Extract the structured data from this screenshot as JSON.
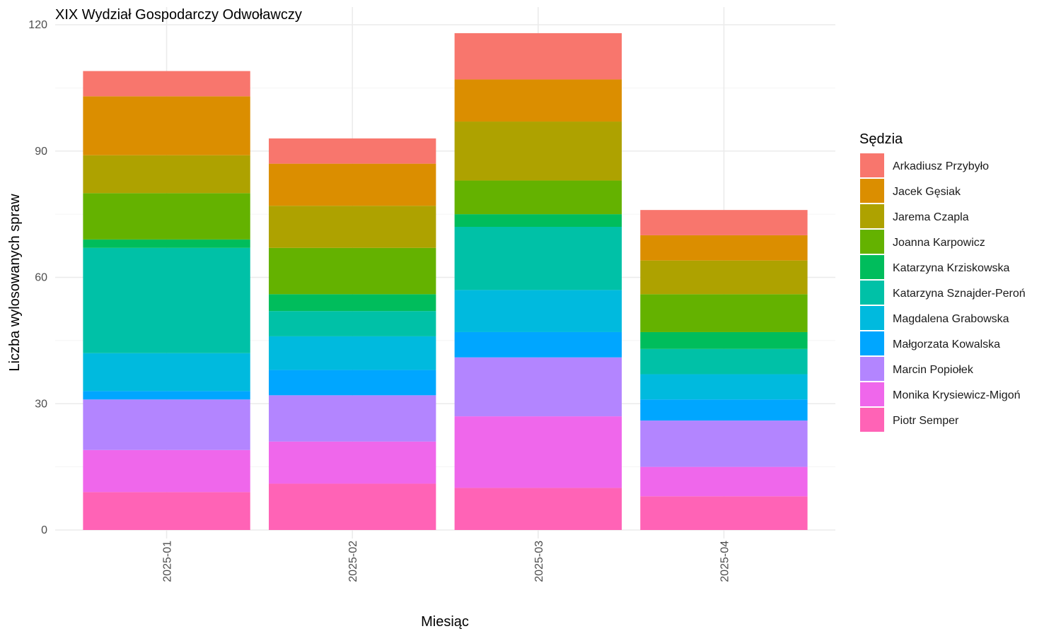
{
  "chart_data": {
    "type": "bar",
    "stacked": true,
    "title": "XIX Wydział Gospodarczy Odwoławczy",
    "xlabel": "Miesiąc",
    "ylabel": "Liczba wylosowanych spraw",
    "ylim": [
      0,
      120
    ],
    "yticks": [
      0,
      30,
      60,
      90,
      120
    ],
    "grid": true,
    "legend_position": "right",
    "legend_title": "Sędzia",
    "categories": [
      "2025-01",
      "2025-02",
      "2025-03",
      "2025-04"
    ],
    "series": [
      {
        "name": "Arkadiusz Przybyło",
        "color": "#F8766D",
        "values": [
          6,
          6,
          11,
          6
        ]
      },
      {
        "name": "Jacek Gęsiak",
        "color": "#DB8E00",
        "values": [
          14,
          10,
          10,
          6
        ]
      },
      {
        "name": "Jarema Czapla",
        "color": "#AEA200",
        "values": [
          9,
          10,
          14,
          8
        ]
      },
      {
        "name": "Joanna Karpowicz",
        "color": "#64B200",
        "values": [
          11,
          11,
          8,
          9
        ]
      },
      {
        "name": "Katarzyna Krziskowska",
        "color": "#00BD5C",
        "values": [
          2,
          4,
          3,
          4
        ]
      },
      {
        "name": "Katarzyna Sznajder-Peroń",
        "color": "#00C1A7",
        "values": [
          25,
          6,
          15,
          6
        ]
      },
      {
        "name": "Magdalena Grabowska",
        "color": "#00BADE",
        "values": [
          9,
          8,
          10,
          6
        ]
      },
      {
        "name": "Małgorzata Kowalska",
        "color": "#00A6FF",
        "values": [
          2,
          6,
          6,
          5
        ]
      },
      {
        "name": "Marcin Popiołek",
        "color": "#B385FF",
        "values": [
          12,
          11,
          14,
          11
        ]
      },
      {
        "name": "Monika Krysiewicz-Migoń",
        "color": "#EF67EB",
        "values": [
          10,
          10,
          17,
          7
        ]
      },
      {
        "name": "Piotr Semper",
        "color": "#FF63B6",
        "values": [
          9,
          11,
          10,
          8
        ]
      }
    ]
  }
}
